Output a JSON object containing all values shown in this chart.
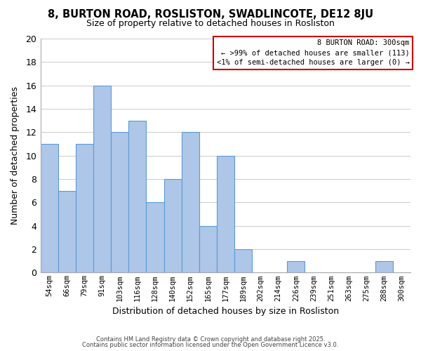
{
  "title_line1": "8, BURTON ROAD, ROSLISTON, SWADLINCOTE, DE12 8JU",
  "title_line2": "Size of property relative to detached houses in Rosliston",
  "xlabel": "Distribution of detached houses by size in Rosliston",
  "ylabel": "Number of detached properties",
  "categories": [
    "54sqm",
    "66sqm",
    "79sqm",
    "91sqm",
    "103sqm",
    "116sqm",
    "128sqm",
    "140sqm",
    "152sqm",
    "165sqm",
    "177sqm",
    "189sqm",
    "202sqm",
    "214sqm",
    "226sqm",
    "239sqm",
    "251sqm",
    "263sqm",
    "275sqm",
    "288sqm",
    "300sqm"
  ],
  "values": [
    11,
    7,
    11,
    16,
    12,
    13,
    6,
    8,
    12,
    4,
    10,
    2,
    0,
    0,
    1,
    0,
    0,
    0,
    0,
    1,
    0
  ],
  "bar_color": "#aec6e8",
  "bar_edge_color": "#5b9bd5",
  "ylim": [
    0,
    20
  ],
  "yticks": [
    0,
    2,
    4,
    6,
    8,
    10,
    12,
    14,
    16,
    18,
    20
  ],
  "grid_color": "#cccccc",
  "background_color": "#ffffff",
  "annotation_box_color": "#cc0000",
  "annotation_title": "8 BURTON ROAD: 300sqm",
  "annotation_line2": "← >99% of detached houses are smaller (113)",
  "annotation_line3": "<1% of semi-detached houses are larger (0) →",
  "footer_line1": "Contains HM Land Registry data © Crown copyright and database right 2025.",
  "footer_line2": "Contains public sector information licensed under the Open Government Licence v3.0."
}
